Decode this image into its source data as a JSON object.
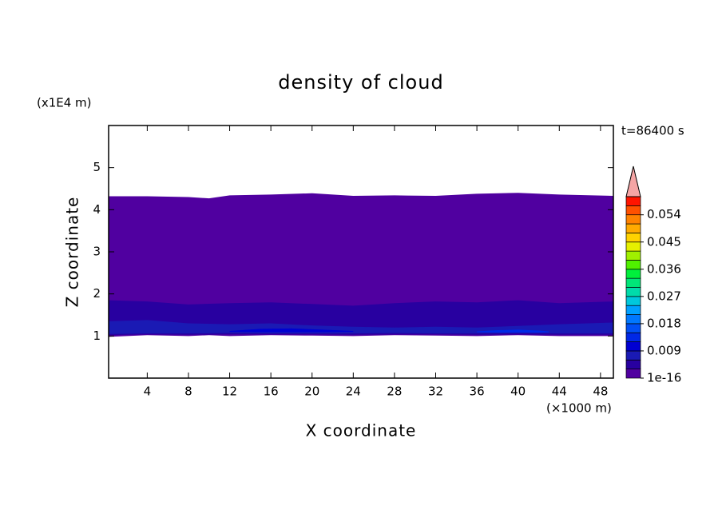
{
  "chart_data": {
    "type": "contour",
    "title": "density of cloud",
    "time_label": "t=86400 s",
    "xlabel": "X coordinate",
    "ylabel": "Z coordinate",
    "x_unit": "(×1000 m)",
    "y_unit": "(x1E4 m)",
    "xlim": [
      0.25,
      49.25
    ],
    "ylim": [
      0,
      6
    ],
    "xticks": [
      4,
      8,
      12,
      16,
      20,
      24,
      28,
      32,
      36,
      40,
      44,
      48
    ],
    "yticks": [
      1,
      2,
      3,
      4,
      5
    ],
    "levels": [
      1e-16,
      0.003,
      0.006,
      0.009,
      0.012,
      0.015,
      0.018,
      0.021,
      0.024,
      0.027,
      0.03,
      0.033,
      0.036,
      0.039,
      0.042,
      0.045,
      0.048,
      0.051,
      0.054,
      0.057,
      0.06
    ],
    "colors": [
      "#5000a0",
      "#2800a0",
      "#1a1ab4",
      "#0000d2",
      "#0028e6",
      "#0050f5",
      "#0078ff",
      "#00a0ff",
      "#00c8dc",
      "#00dcaa",
      "#00e678",
      "#00f03c",
      "#50f000",
      "#a0f000",
      "#e6f000",
      "#ffd200",
      "#ffaa00",
      "#ff8200",
      "#ff5000",
      "#ff1400"
    ],
    "extend_color": "#f5a5a5",
    "colorbar_ticks": [
      1e-16,
      0.009,
      0.018,
      0.027,
      0.036,
      0.045,
      0.054
    ],
    "regions": [
      {
        "value": 0.001,
        "x": [
          0.25,
          4,
          8,
          10,
          12,
          16,
          20,
          24,
          28,
          32,
          36,
          40,
          44,
          49.25
        ],
        "top": [
          4.32,
          4.32,
          4.3,
          4.27,
          4.34,
          4.36,
          4.39,
          4.33,
          4.34,
          4.33,
          4.38,
          4.4,
          4.36,
          4.33
        ],
        "bottom": [
          0.98,
          1.02,
          1.0,
          1.02,
          1.0,
          1.02,
          1.01,
          1.0,
          1.02,
          1.01,
          1.0,
          1.02,
          1.0,
          1.0
        ]
      },
      {
        "value": 0.004,
        "x": [
          0.25,
          4,
          8,
          12,
          16,
          20,
          24,
          28,
          32,
          36,
          40,
          44,
          49.25
        ],
        "top": [
          1.85,
          1.82,
          1.75,
          1.78,
          1.8,
          1.76,
          1.72,
          1.78,
          1.82,
          1.8,
          1.85,
          1.78,
          1.82
        ],
        "bottom": [
          1.02,
          1.04,
          1.03,
          1.04,
          1.04,
          1.04,
          1.03,
          1.04,
          1.04,
          1.03,
          1.04,
          1.03,
          1.03
        ]
      },
      {
        "value": 0.007,
        "x": [
          0.25,
          4,
          8,
          12,
          16,
          20,
          24,
          28,
          32,
          36,
          40,
          44,
          49.25
        ],
        "top": [
          1.35,
          1.38,
          1.3,
          1.28,
          1.3,
          1.25,
          1.22,
          1.2,
          1.22,
          1.2,
          1.24,
          1.28,
          1.32
        ],
        "bottom": [
          1.05,
          1.06,
          1.06,
          1.07,
          1.06,
          1.06,
          1.06,
          1.07,
          1.06,
          1.06,
          1.07,
          1.06,
          1.06
        ]
      },
      {
        "value": 0.011,
        "x": [
          12,
          15,
          18,
          21,
          24
        ],
        "top": [
          1.12,
          1.17,
          1.18,
          1.15,
          1.12
        ],
        "bottom": [
          1.1,
          1.09,
          1.09,
          1.09,
          1.1
        ]
      },
      {
        "value": 0.014,
        "x": [
          36,
          38,
          40,
          42,
          43
        ],
        "top": [
          1.11,
          1.14,
          1.15,
          1.13,
          1.11
        ],
        "bottom": [
          1.09,
          1.08,
          1.08,
          1.08,
          1.09
        ]
      }
    ]
  }
}
